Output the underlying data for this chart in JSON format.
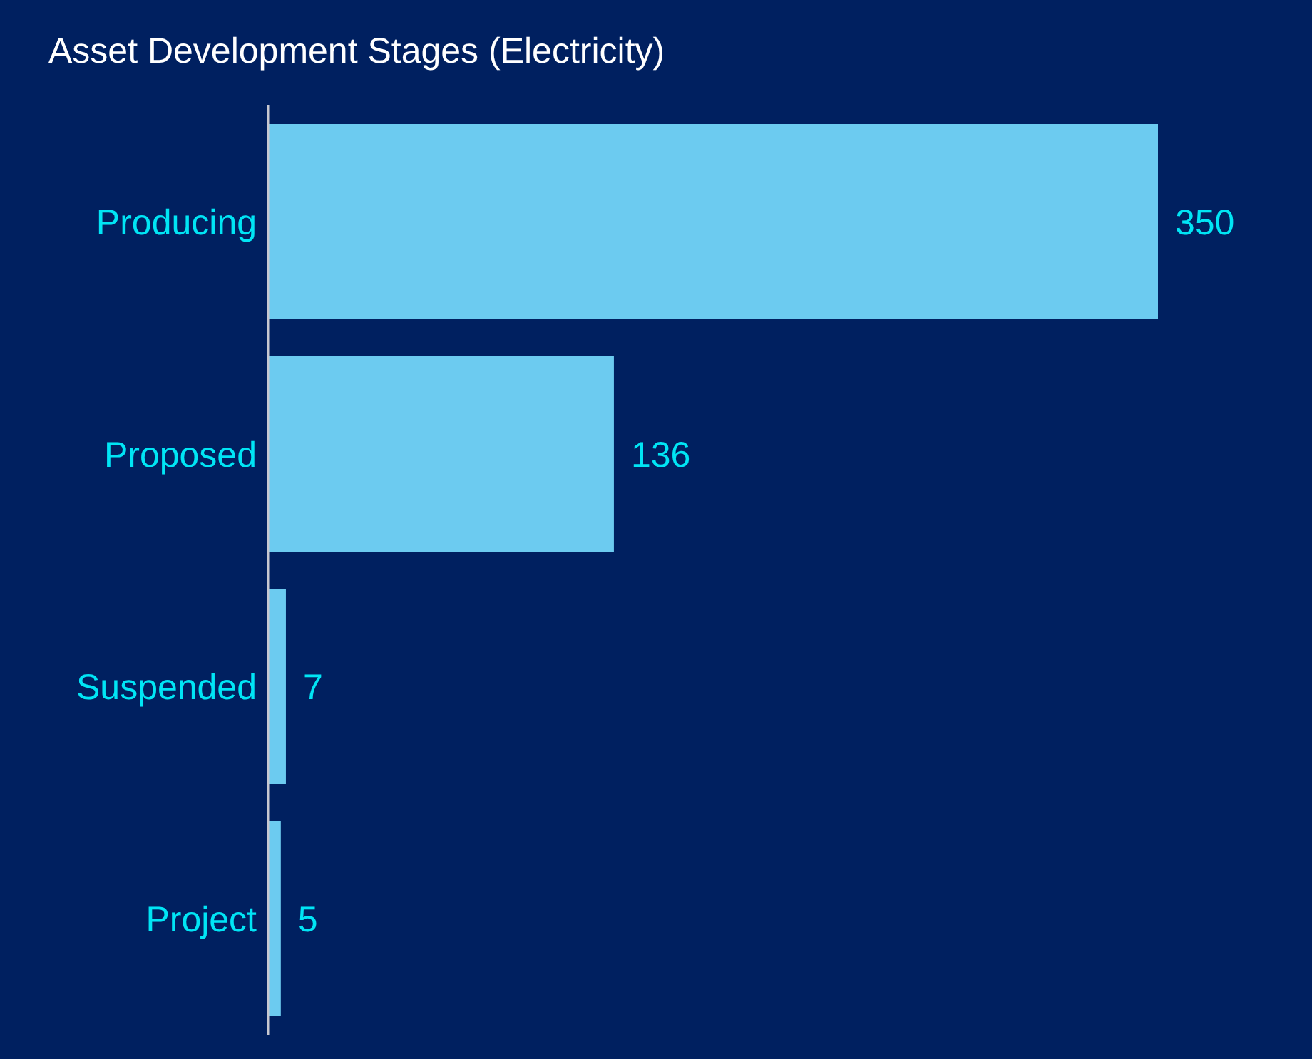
{
  "chart_data": {
    "type": "bar",
    "orientation": "horizontal",
    "title": "Asset Development Stages (Electricity)",
    "categories": [
      "Producing",
      "Proposed",
      "Suspended",
      "Project"
    ],
    "values": [
      350,
      136,
      7,
      5
    ],
    "color": "#6ccbf0",
    "data_labels": true,
    "grid": false,
    "legend": false
  }
}
